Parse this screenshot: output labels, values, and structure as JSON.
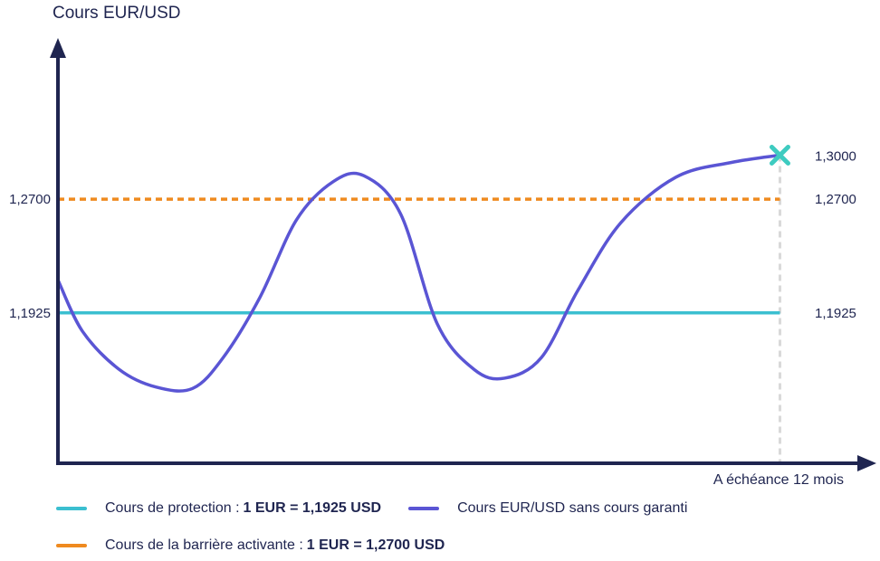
{
  "chart_data": {
    "type": "line",
    "title": "",
    "ylabel": "Cours EUR/USD",
    "xlabel": "A échéance 12 mois",
    "ylim": [
      1.09,
      1.37
    ],
    "xlim": [
      0,
      12
    ],
    "colors": {
      "axis": "#1f2550",
      "protection": "#3bbfd0",
      "barrier": "#ef8a1f",
      "spot": "#5a55d4",
      "marker": "#3ecbc0",
      "guide": "#d9d9d9"
    },
    "reference_lines": [
      {
        "name": "Cours de protection",
        "value": 1.1925,
        "left_label": "1,1925",
        "right_label": "1,1925",
        "style": "solid"
      },
      {
        "name": "Cours de la barrière activante",
        "value": 1.27,
        "left_label": "1,2700",
        "right_label": "1,2700",
        "style": "dashed"
      }
    ],
    "series": [
      {
        "name": "Cours EUR/USD sans cours garanti",
        "x": [
          0,
          0.4,
          1.0,
          1.6,
          2.2,
          2.7,
          3.3,
          3.9,
          4.5,
          5.0,
          5.6,
          6.2,
          6.8,
          7.3,
          7.9,
          8.5,
          9.2,
          10.1,
          11.0,
          11.8
        ],
        "y": [
          1.215,
          1.18,
          1.154,
          1.142,
          1.141,
          1.162,
          1.203,
          1.256,
          1.282,
          1.286,
          1.26,
          1.185,
          1.154,
          1.148,
          1.162,
          1.208,
          1.254,
          1.285,
          1.295,
          1.3
        ]
      }
    ],
    "end_point": {
      "x": 11.8,
      "y": 1.3,
      "label": "1,3000"
    }
  },
  "legend": {
    "protection": {
      "label": "Cours de protection : ",
      "value": "1 EUR = 1,1925 USD"
    },
    "spot": {
      "label": "Cours EUR/USD sans cours garanti"
    },
    "barrier": {
      "label": "Cours de la barrière activante  : ",
      "value": "1 EUR = 1,2700 USD"
    }
  }
}
